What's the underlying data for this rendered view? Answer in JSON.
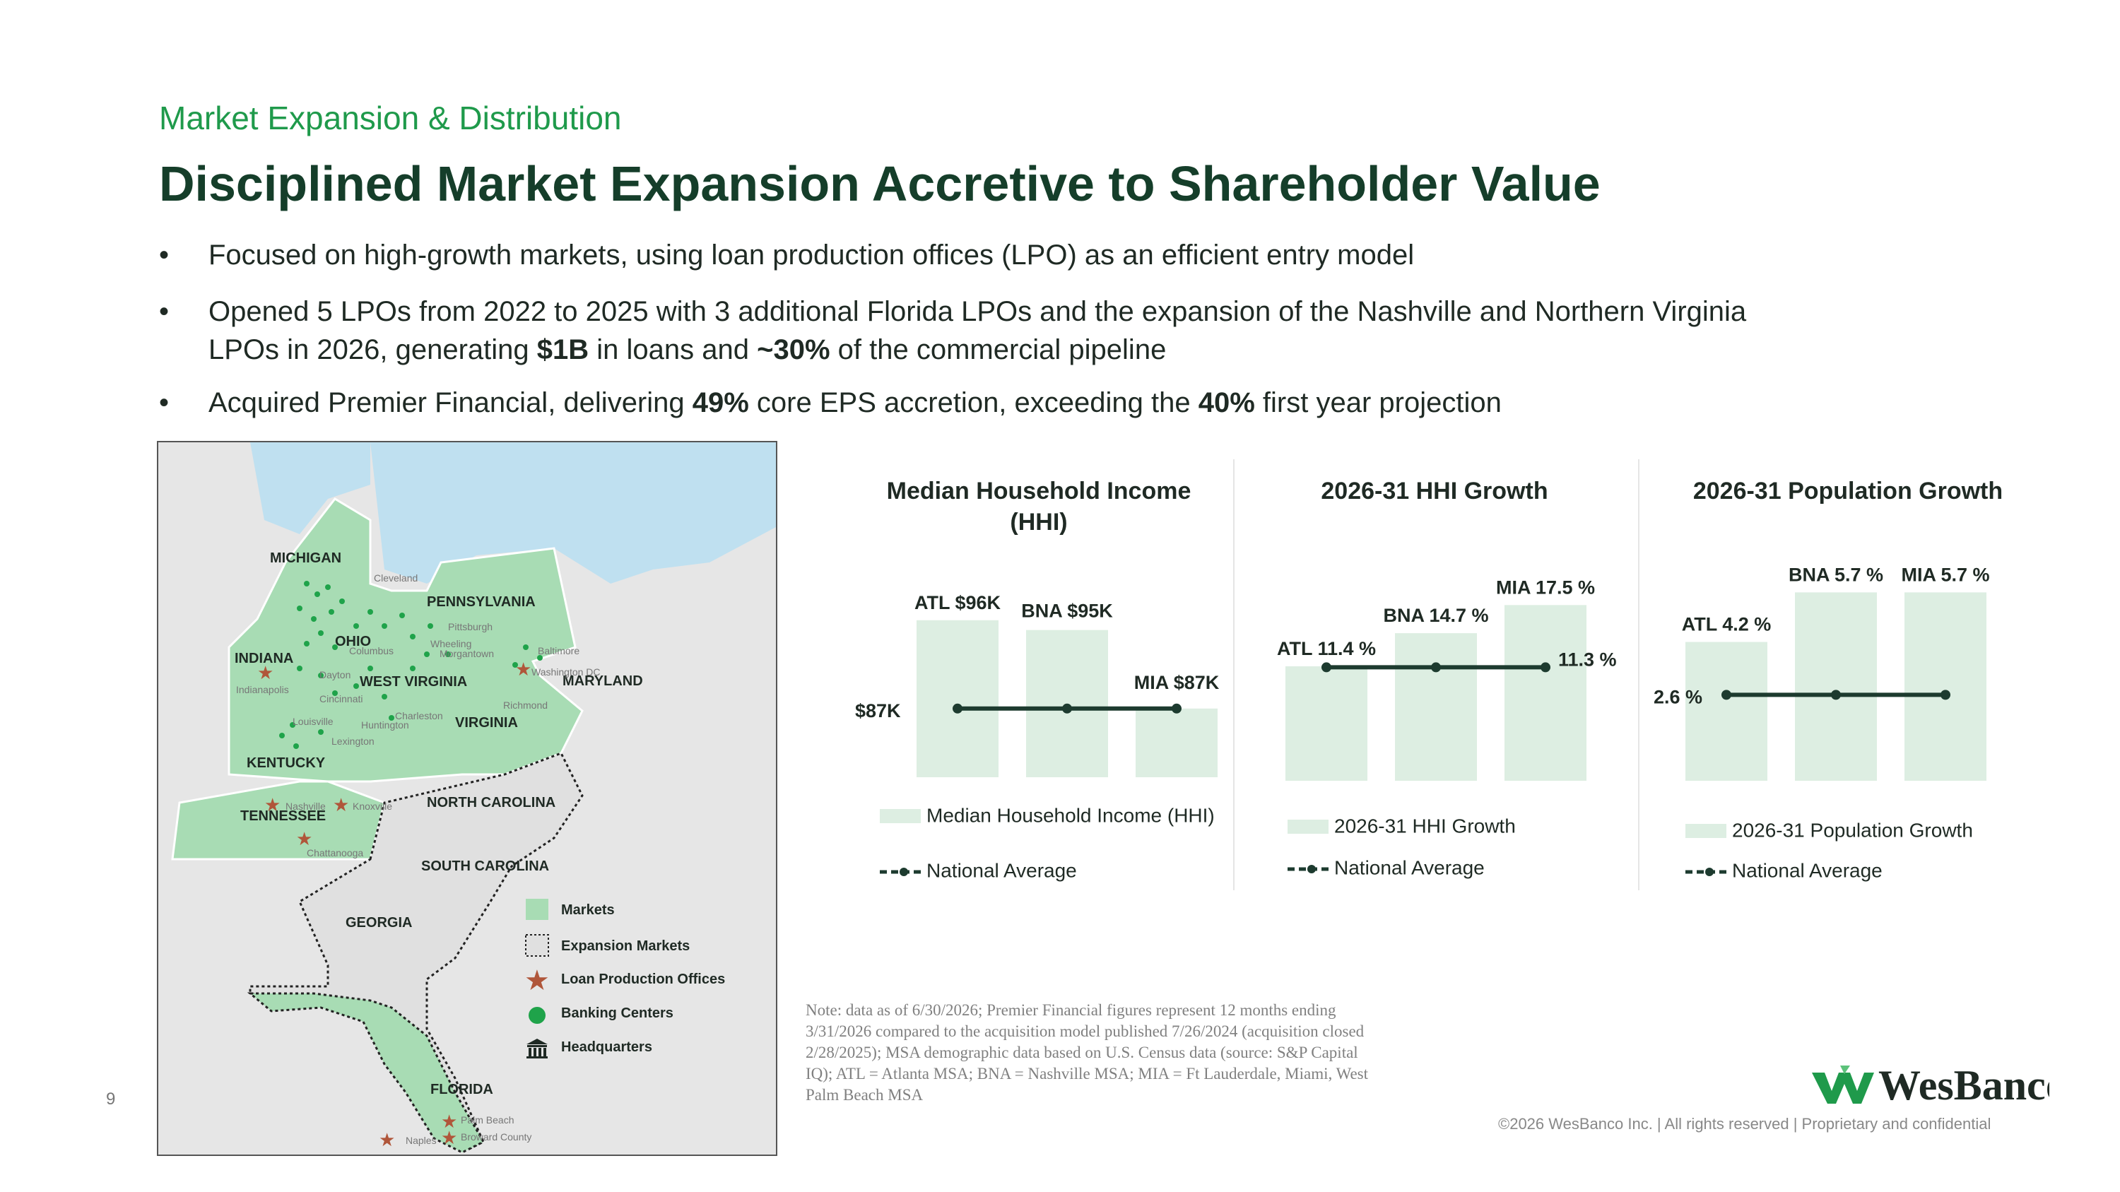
{
  "header": {
    "kicker": "Market Expansion & Distribution",
    "title": "Disciplined Market Expansion Accretive to Shareholder Value"
  },
  "bullets": [
    {
      "parts": [
        "Focused on high-growth markets, using loan production offices (LPO) as an efficient entry model"
      ]
    },
    {
      "line1": "Opened 5 LPOs from 2022 to 2025 with 3 additional Florida LPOs and the expansion of the Nashville and Northern Virginia",
      "line2a": "LPOs in 2026, generating ",
      "line2b": "$1B",
      "line2c": " in loans and ",
      "line2d": "~30%",
      "line2e": " of the commercial pipeline"
    },
    {
      "a": "Acquired Premier Financial, delivering ",
      "b": "49%",
      "c": " core EPS accretion, exceeding the ",
      "d": "40%",
      "e": " first year projection"
    }
  ],
  "bullet_symbol": "•",
  "map": {
    "states": [
      "MICHIGAN",
      "OHIO",
      "PENNSYLVANIA",
      "INDIANA",
      "WEST VIRGINIA",
      "MARYLAND",
      "VIRGINIA",
      "KENTUCKY",
      "TENNESSEE",
      "NORTH CAROLINA",
      "SOUTH CAROLINA",
      "GEORGIA",
      "FLORIDA"
    ],
    "cities": [
      "Cleveland",
      "Pittsburgh",
      "Columbus",
      "Wheeling",
      "Morgantown",
      "Baltimore",
      "Washington DC",
      "Dayton",
      "Indianapolis",
      "Cincinnati",
      "Charleston",
      "Huntington",
      "Richmond",
      "Louisville",
      "Lexington",
      "Nashville",
      "Knoxville",
      "Chattanooga",
      "Palm Beach",
      "Broward County",
      "Naples"
    ],
    "legend": [
      "Markets",
      "Expansion Markets",
      "Loan Production Offices",
      "Banking Centers",
      "Headquarters"
    ],
    "colors": {
      "markets": "#a8dcb4",
      "banking": "#1fa34a",
      "lpo": "#b0563a",
      "water": "#bfe0f0",
      "land": "#e6e6e6"
    }
  },
  "chart_data": [
    {
      "type": "bar",
      "title": "Median Household Income (HHI)",
      "categories": [
        "ATL",
        "BNA",
        "MIA"
      ],
      "series": [
        {
          "name": "Median Household Income (HHI)",
          "values": [
            96,
            95,
            87
          ],
          "labels": [
            "ATL  $96K",
            "BNA  $95K",
            "MIA  $87K"
          ]
        }
      ],
      "reference": {
        "name": "National Average",
        "value": 87,
        "label": "$87K"
      },
      "ylim": [
        80,
        98
      ]
    },
    {
      "type": "bar",
      "title": "2026-31 HHI Growth",
      "categories": [
        "ATL",
        "BNA",
        "MIA"
      ],
      "series": [
        {
          "name": "2026-31 HHI Growth",
          "values": [
            11.4,
            14.7,
            17.5
          ],
          "labels": [
            "ATL  11.4 %",
            "BNA  14.7 %",
            "MIA  17.5 %"
          ]
        }
      ],
      "reference": {
        "name": "National Average",
        "value": 11.3,
        "label": "11.3 %"
      },
      "ylim": [
        0,
        19
      ]
    },
    {
      "type": "bar",
      "title": "2026-31 Population Growth",
      "categories": [
        "ATL",
        "BNA",
        "MIA"
      ],
      "series": [
        {
          "name": "2026-31 Population Growth",
          "values": [
            4.2,
            5.7,
            5.7
          ],
          "labels": [
            "ATL  4.2 %",
            "BNA  5.7 %",
            "MIA  5.7 %"
          ]
        }
      ],
      "reference": {
        "name": "National Average",
        "value": 2.6,
        "label": "2.6 %"
      },
      "ylim": [
        0,
        6.2
      ]
    }
  ],
  "note": "Note: data as of 6/30/2026; Premier Financial figures represent 12 months ending 3/31/2026 compared to the acquisition model published 7/26/2024 (acquisition closed 2/28/2025); MSA demographic data based on U.S. Census data (source: S&P Capital IQ); ATL = Atlanta MSA; BNA = Nashville MSA;  MIA = Ft Lauderdale, Miami, West Palm Beach MSA",
  "page_number": "9",
  "brand": {
    "name": "WesBanco",
    "color": "#1f9a4b"
  },
  "footer": "©2026 WesBanco Inc.  |  All rights reserved  |  Proprietary and confidential",
  "colors": {
    "bar": "#ddeee2",
    "line": "#1d3b2f",
    "accent": "#1f9a4b",
    "title": "#153e2a"
  }
}
